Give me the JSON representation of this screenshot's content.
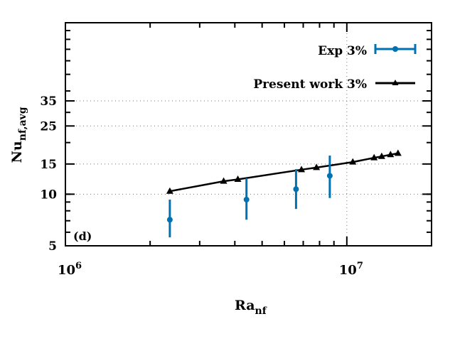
{
  "chart_data": {
    "type": "scatter",
    "xscale": "log",
    "yscale": "log",
    "xlim": [
      1000000,
      20000000
    ],
    "ylim": [
      5,
      100
    ],
    "panel_label": "(d)",
    "xlabel": "Ra",
    "xlabel_sub": "nf",
    "ylabel": "Nu",
    "ylabel_sub": "nf,avg",
    "xticks": [
      {
        "value": 1000000,
        "base": "10",
        "exp": "6"
      },
      {
        "value": 10000000,
        "base": "10",
        "exp": "7"
      }
    ],
    "yticks": [
      {
        "value": 5,
        "label": "5"
      },
      {
        "value": 10,
        "label": "10"
      },
      {
        "value": 15,
        "label": "15"
      },
      {
        "value": 25,
        "label": "25"
      },
      {
        "value": 35,
        "label": "35"
      }
    ],
    "grid": true,
    "legend_position": "top-right",
    "colors": {
      "exp": "#0072b2",
      "present": "#000000"
    },
    "series": [
      {
        "name": "Exp 3%",
        "style": "points-errorbars",
        "points": [
          {
            "x": 2350000,
            "y": 7.1,
            "ylow": 5.6,
            "yhigh": 9.3
          },
          {
            "x": 4400000,
            "y": 9.3,
            "ylow": 7.1,
            "yhigh": 12.4
          },
          {
            "x": 6600000,
            "y": 10.7,
            "ylow": 8.2,
            "yhigh": 14.0
          },
          {
            "x": 8700000,
            "y": 12.8,
            "ylow": 9.5,
            "yhigh": 16.8
          }
        ]
      },
      {
        "name": "Present work 3%",
        "style": "line-triangles",
        "points": [
          {
            "x": 2350000,
            "y": 10.4
          },
          {
            "x": 3650000,
            "y": 11.9
          },
          {
            "x": 4100000,
            "y": 12.2
          },
          {
            "x": 6900000,
            "y": 13.9
          },
          {
            "x": 7800000,
            "y": 14.3
          },
          {
            "x": 10500000,
            "y": 15.4
          },
          {
            "x": 12500000,
            "y": 16.3
          },
          {
            "x": 13300000,
            "y": 16.6
          },
          {
            "x": 14300000,
            "y": 17.0
          },
          {
            "x": 15200000,
            "y": 17.3
          }
        ]
      }
    ]
  }
}
